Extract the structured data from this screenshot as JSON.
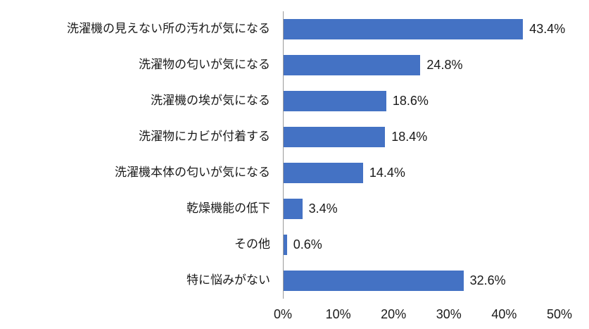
{
  "chart_data": {
    "type": "bar",
    "orientation": "horizontal",
    "title": "",
    "xlabel": "",
    "ylabel": "",
    "xlim": [
      0,
      50
    ],
    "grid": false,
    "legend": false,
    "bar_color": "#4472c4",
    "categories": [
      "洗濯機の見えない所の汚れが気になる",
      "洗濯物の匂いが気になる",
      "洗濯機の埃が気になる",
      "洗濯物にカビが付着する",
      "洗濯機本体の匂いが気になる",
      "乾燥機能の低下",
      "その他",
      "特に悩みがない"
    ],
    "values": [
      43.4,
      24.8,
      18.6,
      18.4,
      14.4,
      3.4,
      0.6,
      32.6
    ],
    "value_labels": [
      "43.4%",
      "24.8%",
      "18.6%",
      "18.4%",
      "14.4%",
      "3.4%",
      "0.6%",
      "32.6%"
    ],
    "x_ticks": [
      "0%",
      "10%",
      "20%",
      "30%",
      "40%",
      "50%"
    ],
    "x_tick_values": [
      0,
      10,
      20,
      30,
      40,
      50
    ]
  }
}
